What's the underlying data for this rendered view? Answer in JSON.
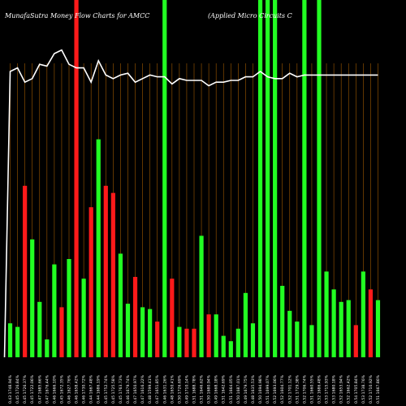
{
  "header": {
    "left_title": "MunafaSutra  Money Flow  Charts for AMCC",
    "right_title": "(Applied Micro   Circuits C"
  },
  "chart_data": {
    "type": "bar",
    "title": "MunafaSutra  Money Flow  Charts for AMCC",
    "subtitle": "(Applied Micro   Circuits C",
    "xlabel": "",
    "ylabel": "",
    "ylim": [
      0,
      100
    ],
    "grid": true,
    "legend": "none",
    "colors": {
      "background": "#000000",
      "grid": "#a05a00",
      "up": "#22ff22",
      "down": "#ff1a1a",
      "line": "#ffffff",
      "text": "#ffffff"
    },
    "categories": [
      "Wed 07 Feb 2018",
      "Tue 06 Feb 2018",
      "Mon 05 Feb 2018",
      "Fri 02 Feb 2018",
      "Thu 01 Feb 2018",
      "Wed 31 Jan 2018",
      "Tue 30 Jan 2018",
      "Mon 29 Jan 2018",
      "Fri 26 Jan 2018",
      "Thu 25 Jan 2018",
      "Wed 24 Jan 2018",
      "Tue 23 Jan 2018",
      "Mon 22 Jan 2018",
      "Fri 19 Jan 2018",
      "Thu 18 Jan 2018",
      "Wed 17 Jan 2018",
      "Tue 16 Jan 2018",
      "Fri 12 Jan 2018",
      "Thu 11 Jan 2018",
      "Wed 10 Jan 2018",
      "Tue 09 Jan 2018",
      "Mon 08 Jan 2018",
      "Fri 05 Jan 2018",
      "Thu 04 Jan 2018",
      "Wed 03 Jan 2018",
      "Tue 02 Jan 2018",
      "Fri 29 Dec 2017",
      "Thu 28 Dec 2017",
      "Wed 27 Dec 2017",
      "Tue 26 Dec 2017",
      "Fri 22 Dec 2017",
      "Thu 21 Dec 2017",
      "Wed 20 Dec 2017",
      "Tue 19 Dec 2017",
      "Mon 18 Dec 2017",
      "Fri 15 Dec 2017",
      "Thu 14 Dec 2017",
      "Wed 13 Dec 2017",
      "Tue 12 Dec 2017",
      "Mon 11 Dec 2017",
      "Fri 08 Dec 2017",
      "Thu 07 Dec 2017",
      "Wed 06 Dec 2017",
      "Tue 05 Dec 2017",
      "Mon 04 Dec 2017",
      "Fri 01 Dec 2017",
      "Thu 30 Nov 2017",
      "Wed 29 Nov 2017",
      "Tue 28 Nov 2017",
      "Mon 27 Nov 2017",
      "Fri 24 Nov 2017"
    ],
    "tick_labels": [
      "0.43 1748.94%",
      "0.45 1726.84%",
      "0.45 1726.37%",
      "0.45 1722.06%",
      "0.47 1685.66%",
      "0.47 1676.44%",
      "0.46 1666.10%",
      "0.45 1672.35%",
      "0.46 1627.76%",
      "0.46 1658.42%",
      "0.46 1730.72%",
      "0.44 1667.48%",
      "0.44 1686.19%",
      "0.45 1752.74%",
      "0.45 1725.58%",
      "0.45 1763.73%",
      "0.46 1679.74%",
      "0.47 1650.97%",
      "0.47 1616.22%",
      "0.48 1599.41%",
      "0.47 1651.85%",
      "0.46 1631.26%",
      "0.48 1650.41%",
      "0.50 1726.69%",
      "0.49 1710.14%",
      "0.51 1688.78%",
      "0.51 1646.62%",
      "0.50 1680.94%",
      "0.49 1668.18%",
      "0.51 1642.69%",
      "0.51 1664.05%",
      "0.50 1687.01%",
      "0.49 1679.75%",
      "0.48 1635.53%",
      "0.50 1694.98%",
      "0.51 1699.07%",
      "0.52 1693.06%",
      "0.52 1604.77%",
      "0.52 1701.12%",
      "0.51 1729.38%",
      "0.52 1706.74%",
      "0.51 1660.55%",
      "0.52 1686.48%",
      "0.53 1715.93%",
      "0.53 1680.18%",
      "0.52 1653.94%",
      "0.52 1662.42%",
      "0.54 1705.84%",
      "0.53 1738.76%",
      "0.52 1710.92%",
      "0.51 1667.86%"
    ],
    "series": [
      {
        "type": "bar",
        "directions": [
          "up",
          "up",
          "down",
          "up",
          "up",
          "up",
          "up",
          "down",
          "up",
          "down",
          "up",
          "down",
          "up",
          "down",
          "down",
          "up",
          "up",
          "down",
          "up",
          "up",
          "down",
          "up",
          "down",
          "up",
          "down",
          "down",
          "up",
          "down",
          "up",
          "up",
          "up",
          "up",
          "up",
          "up",
          "up",
          "up",
          "up",
          "up",
          "up",
          "up",
          "up",
          "up",
          "up",
          "up",
          "up",
          "up",
          "up",
          "down",
          "up",
          "down",
          "up"
        ],
        "values": [
          9.5,
          8.5,
          48,
          33,
          15.5,
          5,
          26,
          14,
          27.5,
          100,
          22,
          42,
          61,
          48,
          46,
          29,
          15,
          22.5,
          14,
          13.5,
          10,
          100,
          22,
          8.5,
          8,
          8,
          34,
          12,
          12,
          6,
          4.5,
          8,
          18,
          9.5,
          100,
          100,
          100,
          20,
          13,
          10,
          100,
          9,
          100,
          24,
          19,
          15.5,
          16,
          9,
          24,
          19,
          16
        ]
      },
      {
        "type": "line",
        "values": [
          80,
          81,
          77,
          78,
          82,
          81.5,
          85,
          86,
          82,
          81,
          81,
          77,
          83,
          79,
          78,
          79,
          79.5,
          77,
          78,
          79,
          78.5,
          78.5,
          76.5,
          78,
          77.5,
          77.5,
          77.5,
          76,
          77,
          77,
          77.5,
          77.5,
          78.5,
          78.5,
          80,
          78.5,
          78,
          78,
          79.5,
          78.5,
          79,
          79,
          79,
          79,
          79,
          79,
          79,
          79,
          79,
          79,
          79
        ]
      }
    ]
  }
}
